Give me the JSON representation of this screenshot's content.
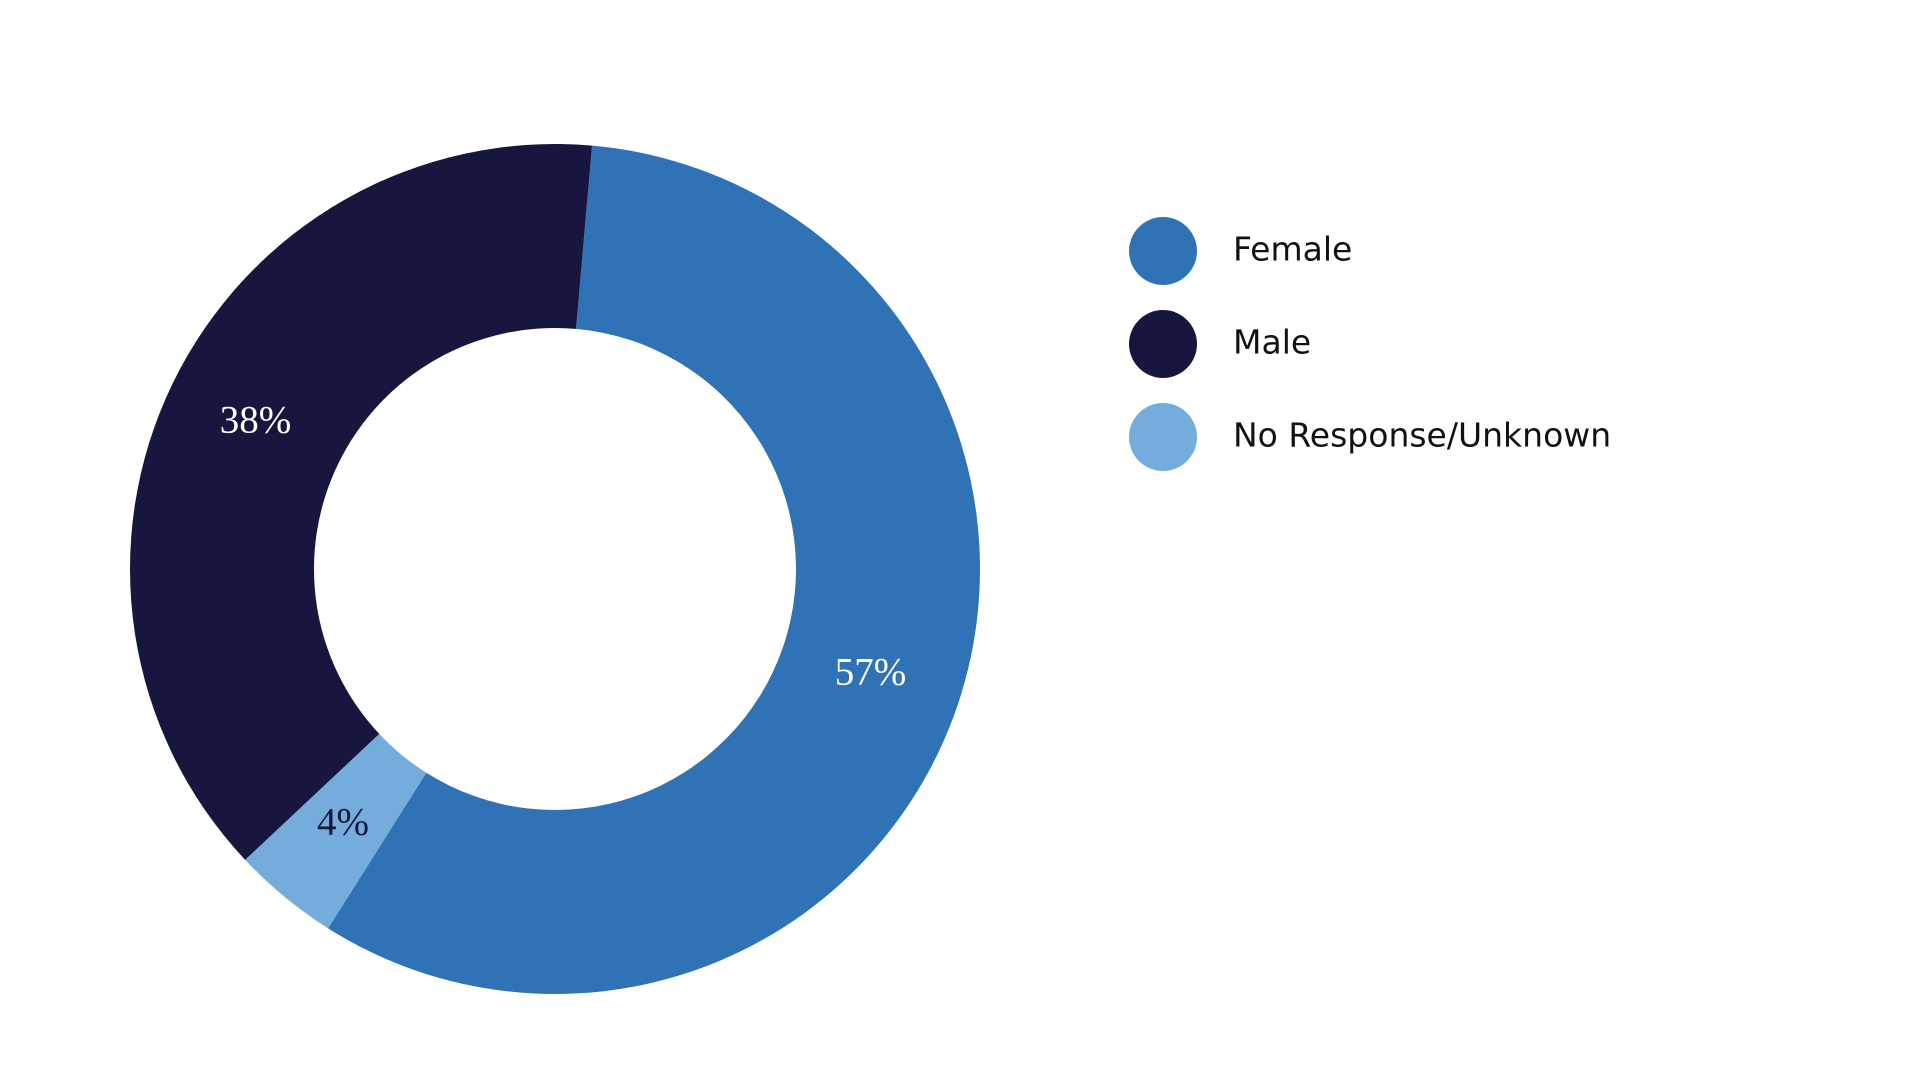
{
  "chart_data": {
    "type": "donut",
    "categories": [
      "Female",
      "Male",
      "No Response/Unknown"
    ],
    "values": [
      57,
      38,
      4
    ],
    "value_labels": [
      "57%",
      "38%",
      "4%"
    ],
    "colors": [
      "#2f72b5",
      "#17163f",
      "#74acdc"
    ],
    "order": [
      0,
      2,
      1
    ],
    "legend": "right"
  }
}
